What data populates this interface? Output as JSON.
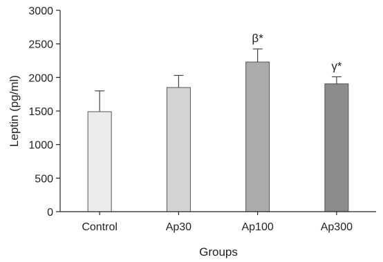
{
  "chart_data": {
    "type": "bar",
    "title": "",
    "xlabel": "Groups",
    "ylabel": "Leptin (pg/ml)",
    "ylim": [
      0,
      3000
    ],
    "yticks": [
      "0",
      "500",
      "1000",
      "1500",
      "2000",
      "2500",
      "3000"
    ],
    "grid": false,
    "categories": [
      "Control",
      "Ap30",
      "Ap100",
      "Ap300"
    ],
    "values": [
      1490,
      1850,
      2230,
      1905
    ],
    "error_upper": [
      310,
      180,
      195,
      105
    ],
    "annotations": [
      "",
      "",
      "β*",
      "γ*"
    ],
    "colors": [
      "#ececec",
      "#d3d3d3",
      "#ababab",
      "#8c8c8c"
    ]
  }
}
